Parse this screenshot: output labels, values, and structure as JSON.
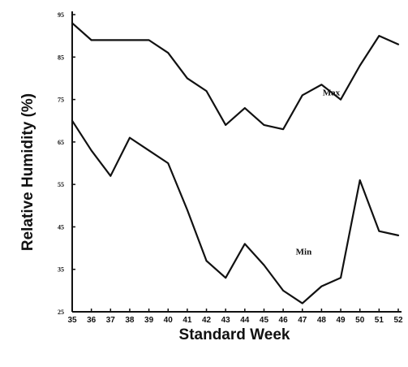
{
  "chart_data": {
    "type": "line",
    "xlabel": "Standard Week",
    "ylabel": "Relative Humidity (%)",
    "x": [
      35,
      36,
      37,
      38,
      39,
      40,
      41,
      42,
      43,
      44,
      45,
      46,
      47,
      48,
      49,
      50,
      51,
      52
    ],
    "x_tick_labels": [
      "35",
      "36",
      "37",
      "38",
      "39",
      "40",
      "41",
      "42",
      "43",
      "44",
      "45",
      "46",
      "47",
      "48",
      "49",
      "50",
      "51",
      "52"
    ],
    "y_ticks": [
      25,
      35,
      45,
      55,
      65,
      75,
      85,
      95
    ],
    "ylim": [
      25,
      95
    ],
    "grid": false,
    "series": [
      {
        "name": "Max",
        "values": [
          93,
          89,
          89,
          89,
          89,
          86,
          80,
          77,
          69,
          73,
          69,
          68,
          76,
          78.5,
          75,
          83,
          90,
          88
        ]
      },
      {
        "name": "Min",
        "values": [
          70,
          63,
          57,
          66,
          63,
          60,
          49,
          37,
          33,
          41,
          36,
          30,
          27,
          31,
          33,
          56,
          44,
          43
        ]
      }
    ],
    "line_color": "#111111"
  }
}
